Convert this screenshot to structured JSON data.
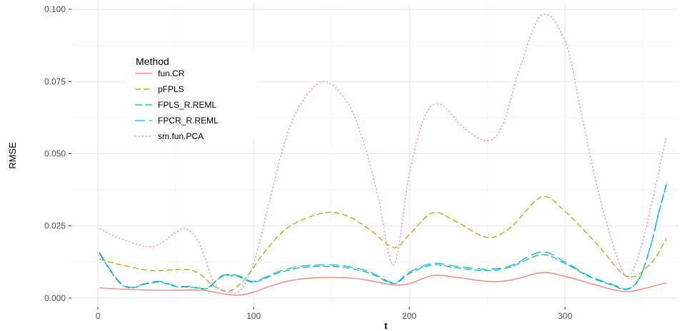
{
  "chart_data": {
    "type": "line",
    "title": "",
    "xlabel": "t",
    "ylabel": "RMSE",
    "xlim": [
      -17,
      373
    ],
    "ylim": [
      -0.003,
      0.102
    ],
    "x_ticks": [
      0,
      100,
      200,
      300
    ],
    "x_tick_labels": [
      "0",
      "100",
      "200",
      "300"
    ],
    "y_ticks": [
      0,
      0.025,
      0.05,
      0.075,
      0.1
    ],
    "y_tick_labels": [
      "0.000",
      "0.025",
      "0.050",
      "0.075",
      "0.100"
    ],
    "grid": true,
    "legend": {
      "title": "Method",
      "placement": "top-left"
    },
    "series": [
      {
        "name": "fun.CR",
        "color": "#F8766D",
        "dash": "solid",
        "x": [
          1,
          20,
          40,
          60,
          70,
          80,
          90,
          100,
          110,
          125,
          145,
          165,
          180,
          190,
          200,
          215,
          230,
          250,
          265,
          285,
          300,
          320,
          330,
          340,
          350,
          365
        ],
        "y": [
          0.0035,
          0.003,
          0.0027,
          0.0028,
          0.0025,
          0.0015,
          0.001,
          0.002,
          0.004,
          0.0062,
          0.0071,
          0.0068,
          0.0055,
          0.0045,
          0.005,
          0.0078,
          0.0072,
          0.0058,
          0.0062,
          0.0088,
          0.0075,
          0.0045,
          0.003,
          0.0022,
          0.0032,
          0.0053
        ]
      },
      {
        "name": "pFPLS",
        "color": "#A3A500",
        "dash": "8,4",
        "x": [
          1,
          15,
          35,
          55,
          65,
          75,
          85,
          95,
          105,
          115,
          125,
          145,
          160,
          175,
          190,
          200,
          215,
          230,
          250,
          265,
          285,
          300,
          320,
          340,
          355,
          365
        ],
        "y": [
          0.0135,
          0.0115,
          0.0095,
          0.01,
          0.0085,
          0.004,
          0.0025,
          0.007,
          0.0145,
          0.021,
          0.0255,
          0.0295,
          0.0285,
          0.0235,
          0.0175,
          0.022,
          0.0295,
          0.0265,
          0.021,
          0.0245,
          0.035,
          0.03,
          0.019,
          0.0075,
          0.012,
          0.0205
        ]
      },
      {
        "name": "FPLS_R.REML",
        "color": "#00BF7D",
        "dash": "10,4",
        "x": [
          1,
          8,
          15,
          22,
          30,
          40,
          50,
          60,
          70,
          80,
          90,
          100,
          115,
          130,
          145,
          160,
          175,
          190,
          200,
          215,
          230,
          250,
          265,
          285,
          300,
          315,
          330,
          340,
          348,
          355,
          360,
          365
        ],
        "y": [
          0.0155,
          0.0095,
          0.0048,
          0.0035,
          0.0048,
          0.0055,
          0.004,
          0.0038,
          0.0033,
          0.0075,
          0.0075,
          0.0055,
          0.0085,
          0.0105,
          0.011,
          0.0105,
          0.0085,
          0.005,
          0.0085,
          0.0115,
          0.0105,
          0.0095,
          0.0108,
          0.015,
          0.012,
          0.0075,
          0.0045,
          0.003,
          0.007,
          0.018,
          0.029,
          0.039
        ]
      },
      {
        "name": "FPCR_R.REML",
        "color": "#00B0F6",
        "dash": "14,6",
        "x": [
          1,
          8,
          15,
          22,
          30,
          40,
          50,
          60,
          70,
          80,
          90,
          100,
          115,
          130,
          145,
          160,
          175,
          190,
          200,
          215,
          230,
          250,
          265,
          285,
          300,
          315,
          330,
          340,
          348,
          355,
          360,
          365
        ],
        "y": [
          0.0158,
          0.0098,
          0.005,
          0.0037,
          0.005,
          0.0058,
          0.0042,
          0.004,
          0.0035,
          0.0078,
          0.0078,
          0.0058,
          0.009,
          0.011,
          0.0115,
          0.011,
          0.009,
          0.0053,
          0.009,
          0.012,
          0.011,
          0.01,
          0.0112,
          0.016,
          0.0125,
          0.0078,
          0.0048,
          0.0032,
          0.0072,
          0.0183,
          0.0293,
          0.0395
        ]
      },
      {
        "name": "sm.fun.PCA",
        "color": "#E76BF3",
        "dash": "2,3",
        "x": [
          1,
          15,
          35,
          50,
          57,
          65,
          75,
          85,
          92,
          100,
          110,
          120,
          130,
          145,
          160,
          170,
          180,
          190,
          200,
          210,
          220,
          235,
          250,
          260,
          270,
          285,
          300,
          310,
          320,
          330,
          340,
          350,
          365
        ],
        "y": [
          0.024,
          0.0205,
          0.0178,
          0.0228,
          0.024,
          0.019,
          0.005,
          0.002,
          0.003,
          0.012,
          0.033,
          0.054,
          0.067,
          0.075,
          0.068,
          0.055,
          0.035,
          0.0115,
          0.043,
          0.063,
          0.067,
          0.059,
          0.0545,
          0.06,
          0.078,
          0.098,
          0.089,
          0.065,
          0.04,
          0.02,
          0.0075,
          0.02,
          0.056
        ]
      }
    ]
  }
}
